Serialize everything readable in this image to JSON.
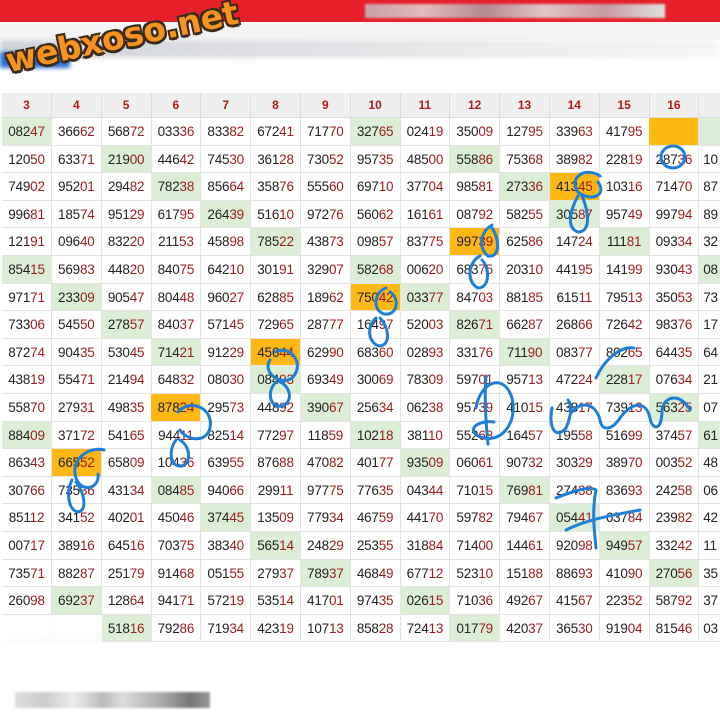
{
  "watermark": "webxoso.net",
  "colors": {
    "header_bar": "#e8202a",
    "highlight_green": "#dcefd6",
    "highlight_orange": "#fdb813",
    "tail_digits": "#9b1c1c",
    "ink": "#1e7fd8"
  },
  "columns": [
    "3",
    "4",
    "5",
    "6",
    "7",
    "8",
    "9",
    "10",
    "11",
    "12",
    "13",
    "14",
    "15",
    "16",
    "1"
  ],
  "rows": [
    [
      "08247",
      "36662",
      "56872",
      "03336",
      "83382",
      "67241",
      "71770",
      "32765",
      "02419",
      "35009",
      "12795",
      "33963",
      "41795",
      "",
      ""
    ],
    [
      "12050",
      "63371",
      "21900",
      "44642",
      "74530",
      "36128",
      "73052",
      "95735",
      "48500",
      "55886",
      "75368",
      "38982",
      "22819",
      "28736",
      "10"
    ],
    [
      "74902",
      "95201",
      "29482",
      "78238",
      "85664",
      "35876",
      "55560",
      "69710",
      "37704",
      "98581",
      "27336",
      "41345",
      "10316",
      "71470",
      "87"
    ],
    [
      "99681",
      "18574",
      "95129",
      "61795",
      "26439",
      "51610",
      "97276",
      "56062",
      "16161",
      "08792",
      "58255",
      "30587",
      "95749",
      "99794",
      "89"
    ],
    [
      "12191",
      "09640",
      "83220",
      "21153",
      "45898",
      "78522",
      "43873",
      "09857",
      "83775",
      "99739",
      "62586",
      "14724",
      "11181",
      "09334",
      "32"
    ],
    [
      "85415",
      "56983",
      "44820",
      "84075",
      "64210",
      "30191",
      "32907",
      "58268",
      "00620",
      "68375",
      "20310",
      "44195",
      "14199",
      "93043",
      "08"
    ],
    [
      "97171",
      "23309",
      "90547",
      "80448",
      "96027",
      "62885",
      "18962",
      "75042",
      "03377",
      "84703",
      "88185",
      "61511",
      "79513",
      "35053",
      "73"
    ],
    [
      "73306",
      "54550",
      "27857",
      "84037",
      "57145",
      "72965",
      "28777",
      "16497",
      "52003",
      "82671",
      "66287",
      "26866",
      "72642",
      "98376",
      "17"
    ],
    [
      "87274",
      "90435",
      "53045",
      "71421",
      "91229",
      "45644",
      "62990",
      "68360",
      "02893",
      "33176",
      "71190",
      "08377",
      "80265",
      "64435",
      "64"
    ],
    [
      "43819",
      "55471",
      "21494",
      "64832",
      "08030",
      "08493",
      "69349",
      "30069",
      "78309",
      "59701",
      "95713",
      "47224",
      "22817",
      "07634",
      "21"
    ],
    [
      "55870",
      "27931",
      "49835",
      "87824",
      "29573",
      "44892",
      "39067",
      "25634",
      "06238",
      "95739",
      "41015",
      "43817",
      "73913",
      "56325",
      "07"
    ],
    [
      "88409",
      "37172",
      "54165",
      "94411",
      "82514",
      "77297",
      "11859",
      "10218",
      "38110",
      "55263",
      "16457",
      "19558",
      "51699",
      "37457",
      "61"
    ],
    [
      "86343",
      "66552",
      "65809",
      "10436",
      "63955",
      "87688",
      "47082",
      "40177",
      "93509",
      "06061",
      "90732",
      "30329",
      "38970",
      "00352",
      "48"
    ],
    [
      "30766",
      "73536",
      "43134",
      "08485",
      "94066",
      "29911",
      "97775",
      "77635",
      "04344",
      "71015",
      "76981",
      "27438",
      "83693",
      "24258",
      "06"
    ],
    [
      "85112",
      "34152",
      "40201",
      "45046",
      "37445",
      "13509",
      "77934",
      "46759",
      "44170",
      "59782",
      "79467",
      "05441",
      "63784",
      "23982",
      "42"
    ],
    [
      "00717",
      "38916",
      "64516",
      "70375",
      "38340",
      "56514",
      "24829",
      "25355",
      "31884",
      "71400",
      "14461",
      "92098",
      "94957",
      "33242",
      "11"
    ],
    [
      "73571",
      "88287",
      "25179",
      "91468",
      "05155",
      "27937",
      "78937",
      "46849",
      "67712",
      "52310",
      "15188",
      "88693",
      "41090",
      "27056",
      "35"
    ],
    [
      "26098",
      "69237",
      "12864",
      "94171",
      "57219",
      "53514",
      "41701",
      "97435",
      "02615",
      "71036",
      "49267",
      "41567",
      "22352",
      "58792",
      "37"
    ],
    [
      "",
      "",
      "51816",
      "79286",
      "71934",
      "42319",
      "10713",
      "85828",
      "72413",
      "01779",
      "42037",
      "36530",
      "91904",
      "81546",
      "03"
    ]
  ],
  "highlights": {
    "green": [
      [
        0,
        0
      ],
      [
        0,
        7
      ],
      [
        0,
        14
      ],
      [
        1,
        2
      ],
      [
        1,
        9
      ],
      [
        2,
        3
      ],
      [
        2,
        10
      ],
      [
        3,
        4
      ],
      [
        3,
        11
      ],
      [
        4,
        5
      ],
      [
        4,
        12
      ],
      [
        5,
        0
      ],
      [
        5,
        7
      ],
      [
        5,
        14
      ],
      [
        6,
        1
      ],
      [
        6,
        8
      ],
      [
        7,
        2
      ],
      [
        7,
        9
      ],
      [
        8,
        3
      ],
      [
        8,
        10
      ],
      [
        9,
        5
      ],
      [
        9,
        12
      ],
      [
        10,
        6
      ],
      [
        10,
        13
      ],
      [
        11,
        0
      ],
      [
        11,
        7
      ],
      [
        11,
        14
      ],
      [
        12,
        8
      ],
      [
        13,
        3
      ],
      [
        13,
        10
      ],
      [
        14,
        4
      ],
      [
        14,
        11
      ],
      [
        15,
        5
      ],
      [
        15,
        12
      ],
      [
        16,
        6
      ],
      [
        16,
        13
      ],
      [
        17,
        1
      ],
      [
        17,
        8
      ],
      [
        18,
        2
      ],
      [
        18,
        9
      ]
    ],
    "orange": [
      [
        0,
        13
      ],
      [
        2,
        11
      ],
      [
        4,
        9
      ],
      [
        6,
        7
      ],
      [
        8,
        5
      ],
      [
        10,
        3
      ],
      [
        12,
        1
      ]
    ]
  }
}
